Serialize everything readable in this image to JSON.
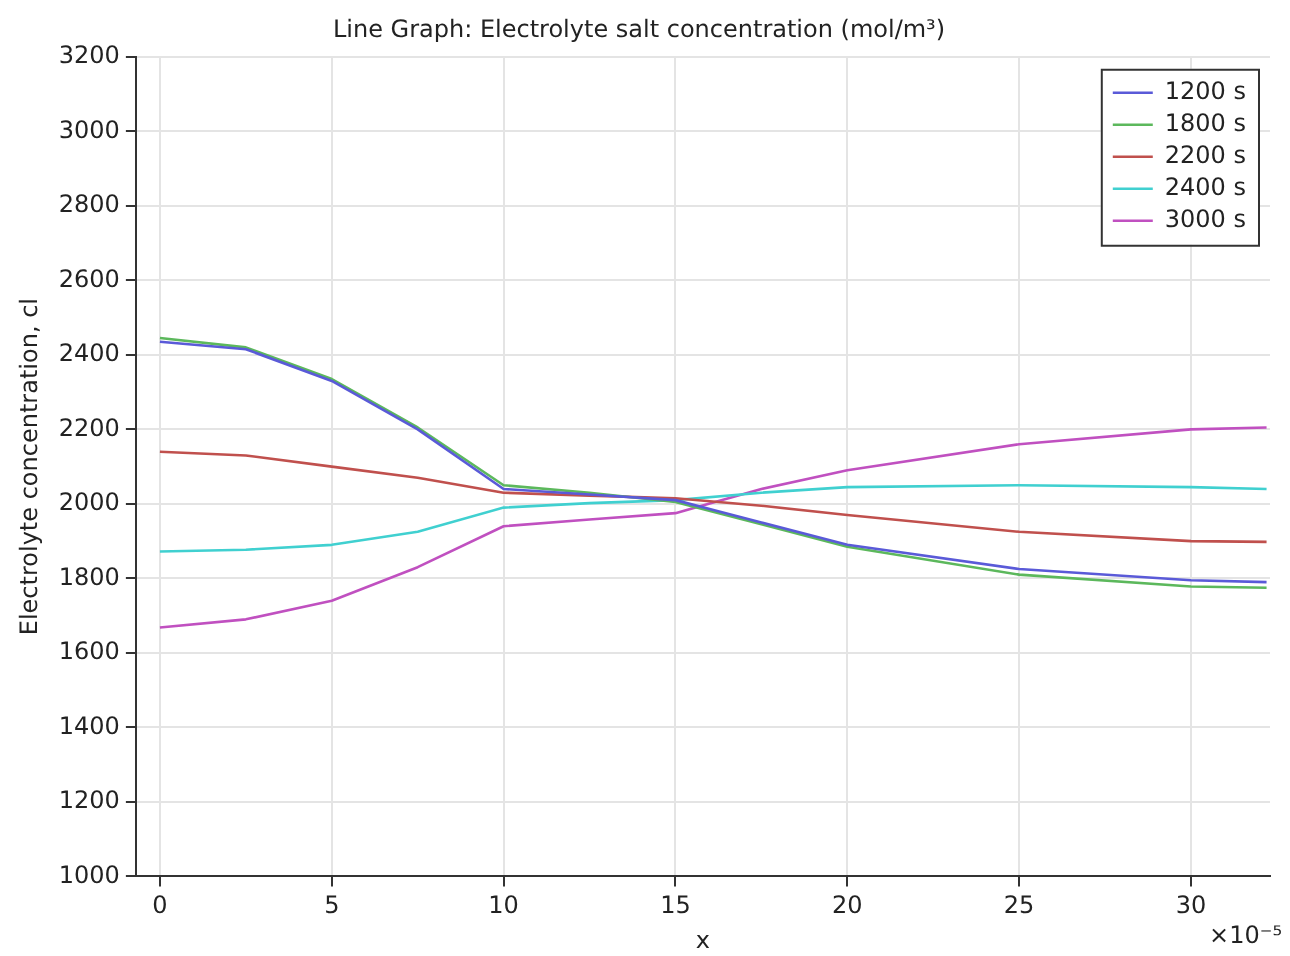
{
  "chart_data": {
    "type": "line",
    "title": "Line Graph: Electrolyte salt concentration (mol/m³)",
    "xlabel": "x",
    "ylabel": "Electrolyte concentration, cl",
    "x": [
      0,
      2.5,
      5,
      7.5,
      10,
      12.5,
      15,
      17.5,
      20,
      25,
      30,
      32.2
    ],
    "series": [
      {
        "name": "1200 s",
        "color": "#5a5ad8",
        "values": [
          2435,
          2415,
          2330,
          2200,
          2040,
          2025,
          2010,
          1950,
          1890,
          1825,
          1795,
          1790
        ]
      },
      {
        "name": "1800 s",
        "color": "#5cb85c",
        "values": [
          2445,
          2420,
          2335,
          2205,
          2050,
          2030,
          2005,
          1945,
          1885,
          1810,
          1778,
          1775
        ]
      },
      {
        "name": "2200 s",
        "color": "#c0504d",
        "values": [
          2140,
          2130,
          2100,
          2070,
          2030,
          2022,
          2015,
          1995,
          1970,
          1925,
          1900,
          1898
        ]
      },
      {
        "name": "2400 s",
        "color": "#40d0d0",
        "values": [
          1872,
          1877,
          1890,
          1925,
          1990,
          2002,
          2010,
          2030,
          2045,
          2050,
          2045,
          2040
        ]
      },
      {
        "name": "3000 s",
        "color": "#c050c0",
        "values": [
          1668,
          1690,
          1740,
          1830,
          1940,
          1958,
          1975,
          2040,
          2090,
          2160,
          2200,
          2205
        ]
      }
    ],
    "xlim": [
      -0.7,
      32.3
    ],
    "xticks": [
      0,
      5,
      10,
      15,
      20,
      25,
      30
    ],
    "ylim": [
      1000,
      3200
    ],
    "yticks": [
      1000,
      1200,
      1400,
      1600,
      1800,
      2000,
      2200,
      2400,
      2600,
      2800,
      3000,
      3200
    ],
    "annotations": [
      "×10⁻⁵"
    ],
    "grid": true,
    "legend": "top right",
    "line_style": "solid",
    "marker": "none"
  }
}
